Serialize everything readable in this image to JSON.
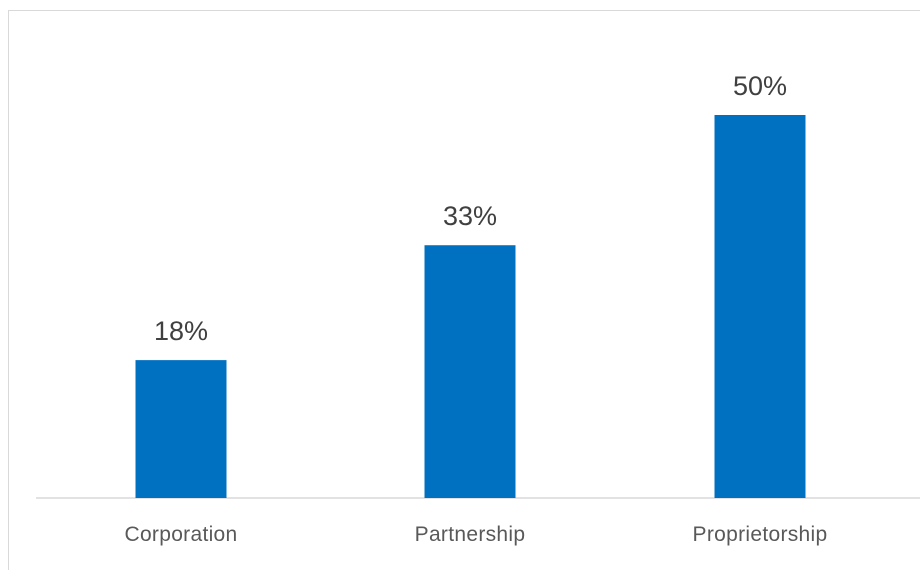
{
  "chart_data": {
    "type": "bar",
    "categories": [
      "Corporation",
      "Partnership",
      "Proprietorship"
    ],
    "values": [
      18,
      33,
      50
    ],
    "data_labels": [
      "18%",
      "33%",
      "50%"
    ],
    "title": "",
    "xlabel": "",
    "ylabel": "",
    "ylim": [
      0,
      50
    ],
    "grid": false,
    "legend": "none",
    "bar_color": "#0070c0"
  }
}
